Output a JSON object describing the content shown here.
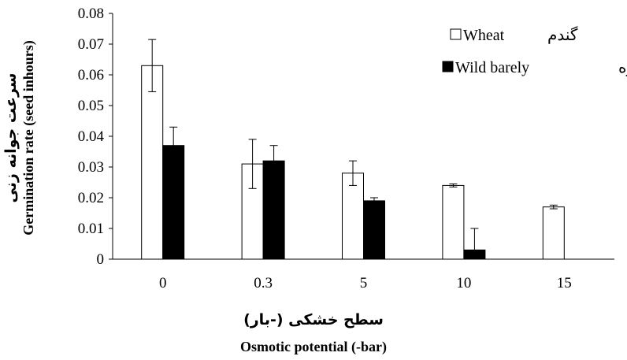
{
  "chart_data": {
    "type": "bar",
    "categories": [
      "0",
      "0.3",
      "5",
      "10",
      "15"
    ],
    "series": [
      {
        "name": "Wheat",
        "name_fa": "گندم",
        "values": [
          0.063,
          0.031,
          0.028,
          0.024,
          0.017
        ],
        "errors": [
          0.0085,
          0.008,
          0.004,
          0.0005,
          0.0006
        ],
        "fill": "#ffffff"
      },
      {
        "name": "Wild barely",
        "name_fa": "جودره",
        "values": [
          0.037,
          0.032,
          0.019,
          0.003,
          null
        ],
        "errors": [
          0.006,
          0.005,
          0.001,
          0.007,
          null
        ],
        "fill": "#000000"
      }
    ],
    "yticks": [
      "0",
      "0.01",
      "0.02",
      "0.03",
      "0.04",
      "0.05",
      "0.06",
      "0.07",
      "0.08"
    ],
    "ylim": [
      0,
      0.08
    ],
    "ylabel_fa": "سرعت جوانه زنی",
    "ylabel": "Germination rate (seed inhours)",
    "xlabel_fa": "سطح خشکی (-بار)",
    "xlabel": "Osmotic potential (-bar)",
    "legend_position": "top-right",
    "grid": false
  }
}
